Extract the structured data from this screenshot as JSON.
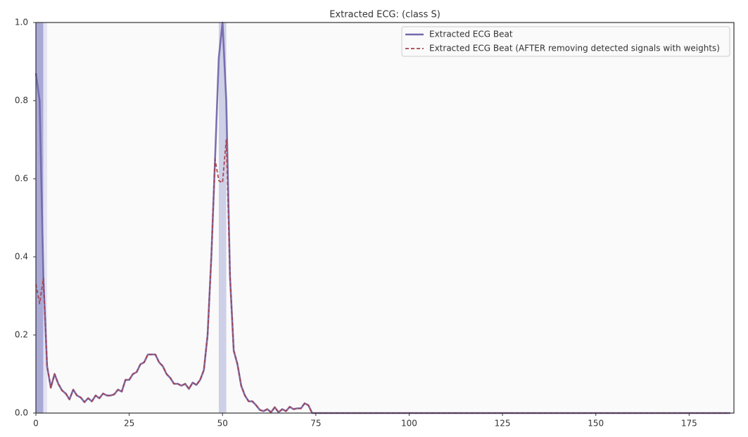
{
  "chart_data": {
    "type": "line",
    "title": "Extracted ECG: (class S)",
    "x": [
      0,
      1,
      2,
      3,
      4,
      5,
      6,
      7,
      8,
      9,
      10,
      11,
      12,
      13,
      14,
      15,
      16,
      17,
      18,
      19,
      20,
      21,
      22,
      23,
      24,
      25,
      26,
      27,
      28,
      29,
      30,
      31,
      32,
      33,
      34,
      35,
      36,
      37,
      38,
      39,
      40,
      41,
      42,
      43,
      44,
      45,
      46,
      47,
      48,
      49,
      50,
      51,
      52,
      53,
      54,
      55,
      56,
      57,
      58,
      59,
      60,
      61,
      62,
      63,
      64,
      65,
      66,
      67,
      68,
      69,
      70,
      71,
      72,
      73,
      74,
      75,
      76,
      77,
      78,
      79,
      80,
      81,
      82,
      83,
      84,
      85,
      86,
      87,
      88,
      89,
      90,
      91,
      92,
      93,
      94,
      95,
      96,
      97,
      98,
      99,
      100,
      101,
      102,
      103,
      104,
      105,
      106,
      107,
      108,
      109,
      110,
      111,
      112,
      113,
      114,
      115,
      116,
      117,
      118,
      119,
      120,
      121,
      122,
      123,
      124,
      125,
      126,
      127,
      128,
      129,
      130,
      131,
      132,
      133,
      134,
      135,
      136,
      137,
      138,
      139,
      140,
      141,
      142,
      143,
      144,
      145,
      146,
      147,
      148,
      149,
      150,
      151,
      152,
      153,
      154,
      155,
      156,
      157,
      158,
      159,
      160,
      161,
      162,
      163,
      164,
      165,
      166,
      167,
      168,
      169,
      170,
      171,
      172,
      173,
      174,
      175,
      176,
      177,
      178,
      179,
      180,
      181,
      182,
      183,
      184,
      185,
      186
    ],
    "series": [
      {
        "name": "Extracted ECG Beat",
        "color": "#7468ad",
        "dash": false,
        "values": [
          0.87,
          0.8,
          0.35,
          0.12,
          0.065,
          0.1,
          0.075,
          0.058,
          0.05,
          0.035,
          0.06,
          0.045,
          0.04,
          0.028,
          0.038,
          0.03,
          0.045,
          0.038,
          0.05,
          0.045,
          0.045,
          0.048,
          0.06,
          0.055,
          0.085,
          0.085,
          0.1,
          0.105,
          0.125,
          0.13,
          0.15,
          0.15,
          0.15,
          0.13,
          0.12,
          0.1,
          0.09,
          0.075,
          0.075,
          0.07,
          0.075,
          0.062,
          0.078,
          0.072,
          0.085,
          0.11,
          0.2,
          0.4,
          0.65,
          0.91,
          1.0,
          0.8,
          0.35,
          0.16,
          0.125,
          0.07,
          0.045,
          0.03,
          0.03,
          0.02,
          0.008,
          0.005,
          0.01,
          0.002,
          0.015,
          0.002,
          0.01,
          0.005,
          0.016,
          0.01,
          0.012,
          0.012,
          0.025,
          0.02,
          0.0,
          0,
          0,
          0,
          0,
          0,
          0,
          0,
          0,
          0,
          0,
          0,
          0,
          0,
          0,
          0,
          0,
          0,
          0,
          0,
          0,
          0,
          0,
          0,
          0,
          0,
          0,
          0,
          0,
          0,
          0,
          0,
          0,
          0,
          0,
          0,
          0,
          0,
          0,
          0,
          0,
          0,
          0,
          0,
          0,
          0,
          0,
          0,
          0,
          0,
          0,
          0,
          0,
          0,
          0,
          0,
          0,
          0,
          0,
          0,
          0,
          0,
          0,
          0,
          0,
          0,
          0,
          0,
          0,
          0,
          0,
          0,
          0,
          0,
          0,
          0,
          0,
          0,
          0,
          0,
          0,
          0,
          0,
          0,
          0,
          0,
          0,
          0,
          0,
          0,
          0,
          0,
          0,
          0,
          0,
          0,
          0,
          0,
          0,
          0,
          0,
          0,
          0,
          0,
          0,
          0,
          0,
          0,
          0,
          0,
          0,
          0,
          0
        ]
      },
      {
        "name": "Extracted ECG Beat (AFTER removing detected signals with weights)",
        "color": "#a8404c",
        "dash": true,
        "values": [
          0.33,
          0.28,
          0.345,
          0.12,
          0.065,
          0.1,
          0.075,
          0.058,
          0.05,
          0.035,
          0.06,
          0.045,
          0.04,
          0.028,
          0.038,
          0.03,
          0.045,
          0.038,
          0.05,
          0.045,
          0.045,
          0.048,
          0.06,
          0.055,
          0.085,
          0.085,
          0.1,
          0.105,
          0.125,
          0.13,
          0.15,
          0.15,
          0.15,
          0.13,
          0.12,
          0.1,
          0.09,
          0.075,
          0.075,
          0.07,
          0.075,
          0.062,
          0.078,
          0.072,
          0.085,
          0.11,
          0.2,
          0.4,
          0.65,
          0.595,
          0.59,
          0.7,
          0.35,
          0.16,
          0.125,
          0.07,
          0.045,
          0.03,
          0.03,
          0.02,
          0.008,
          0.005,
          0.01,
          0.002,
          0.015,
          0.002,
          0.01,
          0.005,
          0.016,
          0.01,
          0.012,
          0.012,
          0.025,
          0.02,
          0.0,
          0,
          0,
          0,
          0,
          0,
          0,
          0,
          0,
          0,
          0,
          0,
          0,
          0,
          0,
          0,
          0,
          0,
          0,
          0,
          0,
          0,
          0,
          0,
          0,
          0,
          0,
          0,
          0,
          0,
          0,
          0,
          0,
          0,
          0,
          0,
          0,
          0,
          0,
          0,
          0,
          0,
          0,
          0,
          0,
          0,
          0,
          0,
          0,
          0,
          0,
          0,
          0,
          0,
          0,
          0,
          0,
          0,
          0,
          0,
          0,
          0,
          0,
          0,
          0,
          0,
          0,
          0,
          0,
          0,
          0,
          0,
          0,
          0,
          0,
          0,
          0,
          0,
          0,
          0,
          0,
          0,
          0,
          0,
          0,
          0,
          0,
          0,
          0,
          0,
          0,
          0,
          0,
          0,
          0,
          0,
          0,
          0,
          0,
          0,
          0,
          0,
          0,
          0,
          0,
          0,
          0,
          0,
          0,
          0,
          0,
          0,
          0
        ]
      }
    ],
    "spans": [
      {
        "x": [
          0,
          2
        ],
        "color": "#a9a9d6"
      },
      {
        "x": [
          2,
          3
        ],
        "color": "#e4e4f2"
      },
      {
        "x": [
          49,
          51
        ],
        "color": "#cdd0e6"
      }
    ],
    "xlim": [
      0,
      187
    ],
    "ylim": [
      0,
      1.0
    ],
    "xticks": [
      0,
      25,
      50,
      75,
      100,
      125,
      150,
      175
    ],
    "yticks": [
      {
        "value": 0,
        "label": "0.0"
      },
      0.2,
      0.4,
      0.6,
      0.8,
      {
        "value": 1.0,
        "label": "1.0"
      }
    ],
    "legend": "upper right",
    "grid": false
  }
}
